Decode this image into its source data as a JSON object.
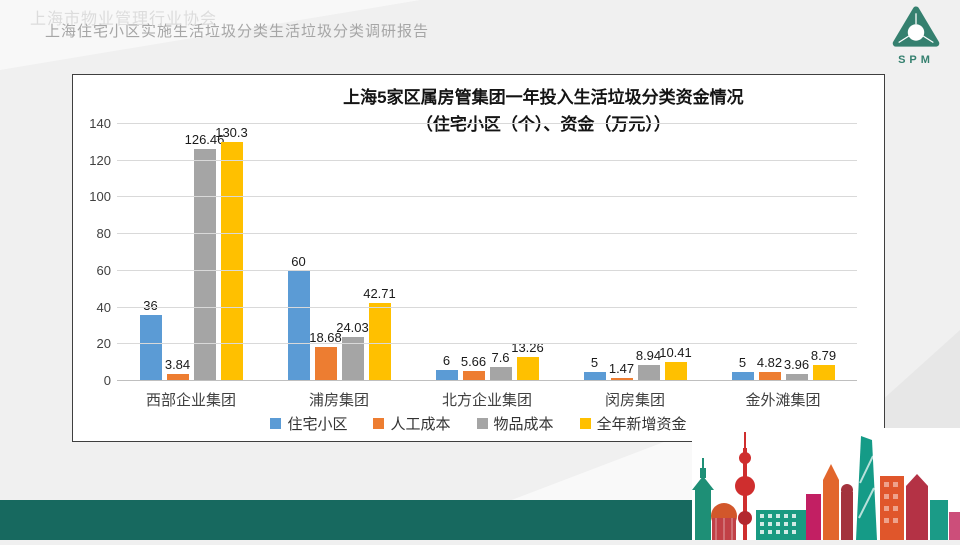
{
  "header": {
    "title": "上海住宅小区实施生活垃圾分类生活垃圾分类调研报告",
    "logo_text": "SPM"
  },
  "footer": {
    "text": "上海市物业管理行业协会"
  },
  "chart_data": {
    "type": "bar",
    "title_line1": "上海5家区属房管集团一年投入生活垃圾分类资金情况",
    "title_line2": "（住宅小区（个）、资金（万元））",
    "categories": [
      "西部企业集团",
      "浦房集团",
      "北方企业集团",
      "闵房集团",
      "金外滩集团"
    ],
    "series": [
      {
        "name": "住宅小区",
        "color": "#5B9BD5",
        "values": [
          36,
          60,
          6,
          5,
          5
        ]
      },
      {
        "name": "人工成本",
        "color": "#ED7D31",
        "values": [
          3.84,
          18.68,
          5.66,
          1.47,
          4.82
        ]
      },
      {
        "name": "物品成本",
        "color": "#A5A5A5",
        "values": [
          126.46,
          24.03,
          7.6,
          8.94,
          3.96
        ]
      },
      {
        "name": "全年新增资金",
        "color": "#FFC000",
        "values": [
          130.3,
          42.71,
          13.26,
          10.41,
          8.79
        ]
      }
    ],
    "ylim": [
      0,
      140
    ],
    "yticks": [
      0,
      20,
      40,
      60,
      80,
      100,
      120,
      140
    ],
    "grid": true,
    "legend_position": "bottom"
  },
  "theme": {
    "footer_bar_color": "#17695f",
    "logo_color": "#35806f",
    "header_text_color": "#a6a6a6"
  }
}
